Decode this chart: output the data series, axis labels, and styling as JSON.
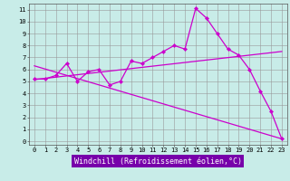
{
  "title": "",
  "xlabel": "Windchill (Refroidissement éolien,°C)",
  "x_ticks": [
    0,
    1,
    2,
    3,
    4,
    5,
    6,
    7,
    8,
    9,
    10,
    11,
    12,
    13,
    14,
    15,
    16,
    17,
    18,
    19,
    20,
    21,
    22,
    23
  ],
  "y_ticks": [
    0,
    1,
    2,
    3,
    4,
    5,
    6,
    7,
    8,
    9,
    10,
    11
  ],
  "ylim": [
    -0.3,
    11.5
  ],
  "xlim": [
    -0.5,
    23.5
  ],
  "bg_color": "#c8ece8",
  "line_color": "#cc00cc",
  "line1_x": [
    0,
    1,
    2,
    3,
    4,
    5,
    6,
    7,
    8,
    9,
    10,
    11,
    12,
    13,
    14,
    15,
    16,
    17,
    18,
    19,
    20,
    21,
    22,
    23
  ],
  "line1_y": [
    5.2,
    5.2,
    5.5,
    6.5,
    5.0,
    5.8,
    6.0,
    4.7,
    5.0,
    6.7,
    6.5,
    7.0,
    7.5,
    8.0,
    7.7,
    11.1,
    10.3,
    9.0,
    7.7,
    7.2,
    6.0,
    4.2,
    2.5,
    0.2
  ],
  "line2_x": [
    0,
    23
  ],
  "line2_y": [
    5.15,
    7.5
  ],
  "line3_x": [
    0,
    23
  ],
  "line3_y": [
    6.3,
    0.2
  ],
  "grid_color": "#999999",
  "tick_fontsize": 5,
  "label_fontsize": 6,
  "label_bg": "#7700aa",
  "label_fg": "#ffffff"
}
